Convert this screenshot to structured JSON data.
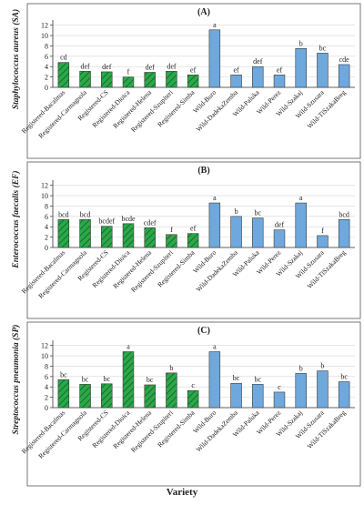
{
  "figure": {
    "xlabel": "Variety"
  },
  "colors": {
    "registered": "#2aa84a",
    "wild": "#6fa8dc",
    "outline": "#3a3a3a",
    "panel_border": "#555555"
  },
  "chart_data": [
    {
      "type": "bar",
      "title": "(A)",
      "ylabel": "Staphylococcus aureus (SA)",
      "ylim": [
        0,
        13
      ],
      "yticks": [
        0,
        2,
        4,
        6,
        8,
        10,
        12
      ],
      "categories": [
        "Registered-Bacalmas",
        "Registered-Carmagnola",
        "Registered-CS",
        "Registered-Dioica",
        "Registered-Helena",
        "Registered-Szupiteri",
        "Registered-Simba",
        "Wild-Buro",
        "Wild-DadekaZemba",
        "Wild-Paluka",
        "Wild-Perez",
        "Wild-Szakaj",
        "Wild-Szusara",
        "Wild-TiSzakaBreg"
      ],
      "groups": [
        "registered",
        "registered",
        "registered",
        "registered",
        "registered",
        "registered",
        "registered",
        "wild",
        "wild",
        "wild",
        "wild",
        "wild",
        "wild",
        "wild"
      ],
      "values": [
        4.8,
        3.1,
        3.0,
        2.0,
        2.9,
        3.1,
        2.4,
        11.1,
        2.4,
        4.0,
        2.4,
        7.5,
        6.6,
        4.4
      ],
      "letters": [
        "cd",
        "def",
        "def",
        "f",
        "def",
        "def",
        "ef",
        "a",
        "ef",
        "def",
        "ef",
        "b",
        "bc",
        "cde"
      ],
      "grid": true
    },
    {
      "type": "bar",
      "title": "(B)",
      "ylabel": "Enterococcus faecalis (EF)",
      "ylim": [
        0,
        13
      ],
      "yticks": [
        0,
        2,
        4,
        6,
        8,
        10,
        12
      ],
      "categories": [
        "Registered-Bacalmas",
        "Registered-Carmagnola",
        "Registered-CS",
        "Registered-Dioica",
        "Registered-Helena",
        "Registered-Szupiteri",
        "Registered-Simba",
        "Wild-Buro",
        "Wild-DadekaZemba",
        "Wild-Paluka",
        "Wild-Perez",
        "Wild-Szakaj",
        "Wild-Szusara",
        "Wild-TiSzakaBreg"
      ],
      "groups": [
        "registered",
        "registered",
        "registered",
        "registered",
        "registered",
        "registered",
        "registered",
        "wild",
        "wild",
        "wild",
        "wild",
        "wild",
        "wild",
        "wild"
      ],
      "values": [
        5.4,
        5.4,
        4.1,
        4.6,
        3.8,
        2.5,
        2.7,
        8.6,
        6.0,
        5.7,
        3.4,
        8.6,
        2.3,
        5.4
      ],
      "letters": [
        "bcd",
        "bcd",
        "bcdef",
        "bcde",
        "cdef",
        "f",
        "ef",
        "a",
        "b",
        "bc",
        "def",
        "a",
        "f",
        "bcd"
      ],
      "grid": true
    },
    {
      "type": "bar",
      "title": "(C)",
      "ylabel": "Streptococcus pneumonia (SP)",
      "ylim": [
        0,
        13
      ],
      "yticks": [
        0,
        2,
        4,
        6,
        8,
        10,
        12
      ],
      "categories": [
        "Registered-Bacalmas",
        "Registered-Carmagnola",
        "Registered-CS",
        "Registered-Dioica",
        "Registered-Helena",
        "Registered-Szupiteri",
        "Registered-Simba",
        "Wild-Buro",
        "Wild-DadekaZemba",
        "Wild-Paluka",
        "Wild-Perez",
        "Wild-Szakaj",
        "Wild-Szusara",
        "Wild-TiSzakaBreg"
      ],
      "groups": [
        "registered",
        "registered",
        "registered",
        "registered",
        "registered",
        "registered",
        "registered",
        "wild",
        "wild",
        "wild",
        "wild",
        "wild",
        "wild",
        "wild"
      ],
      "values": [
        5.4,
        4.5,
        4.6,
        10.8,
        4.4,
        6.7,
        3.3,
        10.8,
        4.7,
        4.5,
        3.0,
        6.6,
        7.1,
        5.0
      ],
      "letters": [
        "bc",
        "bc",
        "bc",
        "a",
        "bc",
        "b",
        "c",
        "a",
        "bc",
        "bc",
        "c",
        "b",
        "b",
        "bc"
      ],
      "grid": true
    }
  ]
}
